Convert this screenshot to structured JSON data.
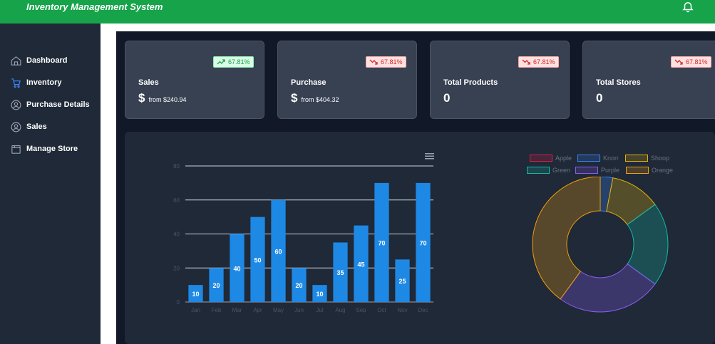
{
  "header": {
    "title": "Inventory Management System"
  },
  "sidebar": {
    "items": [
      {
        "label": "Dashboard",
        "icon": "home-icon"
      },
      {
        "label": "Inventory",
        "icon": "cart-icon"
      },
      {
        "label": "Purchase Details",
        "icon": "user-circle-icon"
      },
      {
        "label": "Sales",
        "icon": "user-circle-icon"
      },
      {
        "label": "Manage Store",
        "icon": "store-icon"
      }
    ]
  },
  "cards": [
    {
      "label": "Sales",
      "value": "$",
      "from": "from $240.94",
      "badge": "67.81%",
      "trend": "up"
    },
    {
      "label": "Purchase",
      "value": "$",
      "from": "from $404.32",
      "badge": "67.81%",
      "trend": "down"
    },
    {
      "label": "Total Products",
      "value": "0",
      "from": "",
      "badge": "67.81%",
      "trend": "down"
    },
    {
      "label": "Total Stores",
      "value": "0",
      "from": "",
      "badge": "67.81%",
      "trend": "down"
    }
  ],
  "colors": {
    "header": "#16a34a",
    "bar": "#1e88e5",
    "up": "#16a34a",
    "down": "#dc2626"
  },
  "chart_data": [
    {
      "type": "bar",
      "categories": [
        "Jan",
        "Feb",
        "Mar",
        "Apr",
        "May",
        "Jun",
        "Jul",
        "Aug",
        "Sep",
        "Oct",
        "Nov",
        "Dec"
      ],
      "values": [
        10,
        20,
        40,
        50,
        60,
        20,
        10,
        35,
        45,
        70,
        25,
        70
      ],
      "yticks": [
        0,
        20,
        40,
        60,
        80
      ],
      "ylim": [
        0,
        80
      ]
    },
    {
      "type": "pie",
      "donut": true,
      "labels": [
        "Apple",
        "Knorr",
        "Shoop",
        "Green",
        "Purple",
        "Orange"
      ],
      "values": [
        3,
        12,
        20,
        25,
        40,
        0
      ],
      "slices": [
        {
          "label": "Apple",
          "value": 3,
          "color": "#3b82f6"
        },
        {
          "label": "Knorr",
          "value": 12,
          "color": "#eab308"
        },
        {
          "label": "Shoop",
          "value": 20,
          "color": "#14b8a6"
        },
        {
          "label": "Green",
          "value": 25,
          "color": "#8b5cf6"
        },
        {
          "label": "Purple",
          "value": 40,
          "color": "#f59e0b"
        }
      ],
      "legend": [
        {
          "label": "Apple",
          "color": "#e11d48"
        },
        {
          "label": "Knorr",
          "color": "#3b82f6"
        },
        {
          "label": "Shoop",
          "color": "#eab308"
        },
        {
          "label": "Green",
          "color": "#14b8a6"
        },
        {
          "label": "Purple",
          "color": "#8b5cf6"
        },
        {
          "label": "Orange",
          "color": "#f59e0b"
        }
      ]
    }
  ]
}
